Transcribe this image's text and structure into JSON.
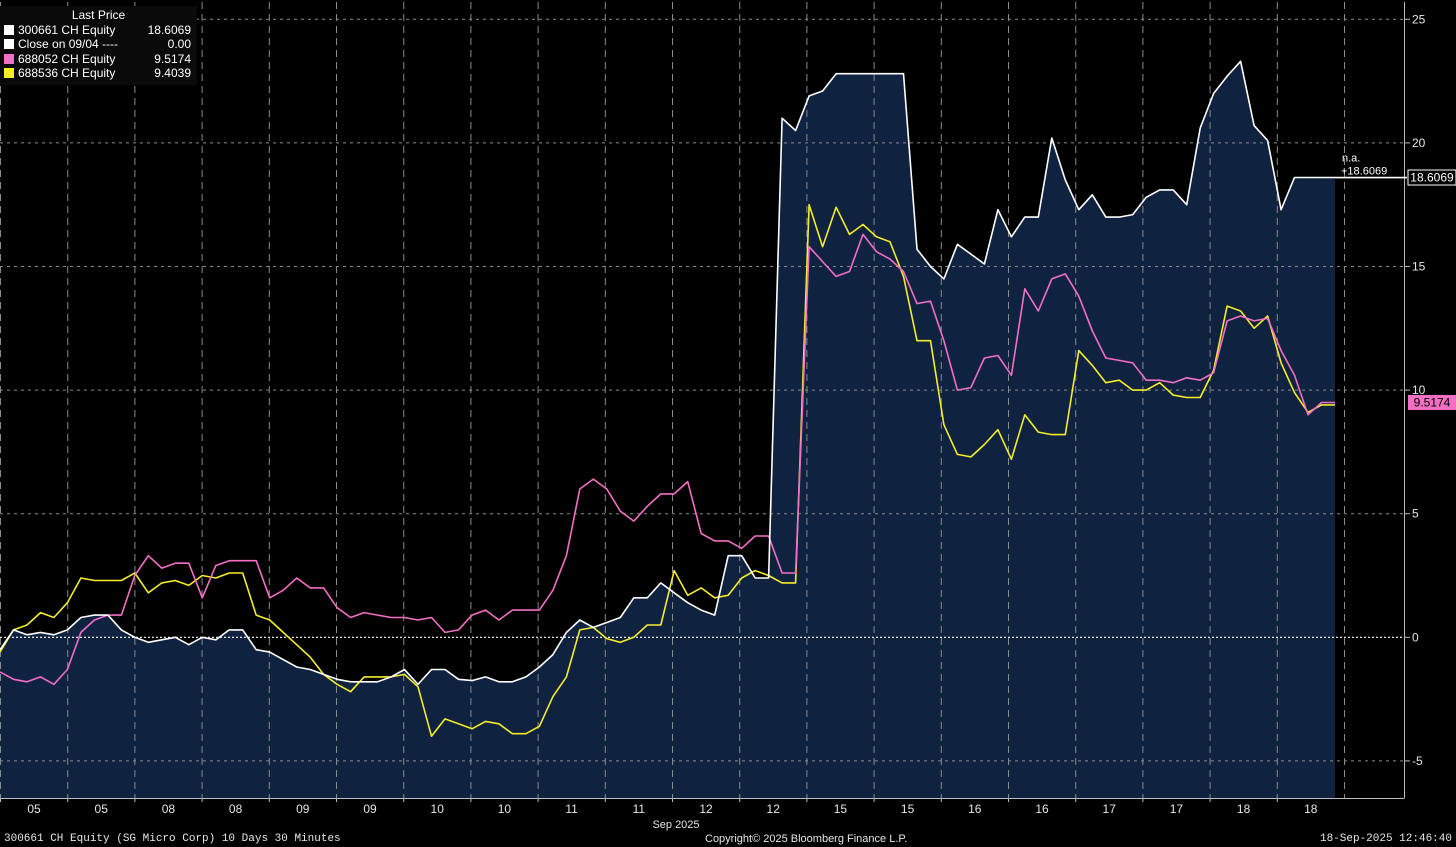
{
  "chart_data": {
    "type": "line",
    "title": "",
    "xlabel": "Sep 2025",
    "ylabel": "",
    "ylim": [
      -6.5,
      25.7
    ],
    "grid": true,
    "y_ticks": [
      25,
      20,
      15,
      10,
      5,
      0,
      -5
    ],
    "y_tick_labels": [
      "25",
      "20",
      "15",
      "10",
      "5",
      "0",
      "-5"
    ],
    "x_tick_labels": [
      "05",
      "05",
      "08",
      "08",
      "09",
      "09",
      "10",
      "10",
      "11",
      "11",
      "12",
      "12",
      "15",
      "15",
      "16",
      "16",
      "17",
      "17",
      "18",
      "18"
    ],
    "zero_line_label": "0",
    "colors": {
      "white_series": "#ffffff",
      "pink_series": "#f26fc4",
      "yellow_series": "#f5ec2a",
      "fill": "#0f2240",
      "grid": "#8a8a8a"
    },
    "legend": {
      "header": "Last Price",
      "placement": "top-left",
      "entries": [
        {
          "name": "300661 CH Equity",
          "value": "18.6069",
          "color": "#ffffff"
        },
        {
          "name": "Close on 09/04 ----",
          "value": "0.00",
          "color": "#ffffff"
        },
        {
          "name": "688052 CH Equity",
          "value": "9.5174",
          "color": "#f26fc4"
        },
        {
          "name": "688536 CH Equity",
          "value": "9.4039",
          "color": "#f5ec2a"
        }
      ]
    },
    "annotations": {
      "na_label": "n.a.",
      "last_change_label": "+18.6069",
      "last_price_tag": "18.6069",
      "pink_last_tag": "9.5174"
    },
    "series": [
      {
        "name": "300661 CH Equity",
        "color": "#ffffff",
        "fill": true,
        "values": [
          -0.5,
          0.3,
          0.1,
          0.2,
          0.1,
          0.3,
          0.8,
          0.9,
          0.9,
          0.3,
          0,
          -0.2,
          -0.1,
          0,
          -0.3,
          0,
          -0.1,
          0.3,
          0.3,
          -0.5,
          -0.6,
          -0.9,
          -1.2,
          -1.3,
          -1.5,
          -1.7,
          -1.8,
          -1.8,
          -1.8,
          -1.6,
          -1.3,
          -1.9,
          -1.3,
          -1.3,
          -1.7,
          -1.75,
          -1.6,
          -1.8,
          -1.8,
          -1.6,
          -1.2,
          -0.7,
          0.2,
          0.7,
          0.4,
          0.6,
          0.8,
          1.6,
          1.6,
          2.2,
          1.8,
          1.4,
          1.1,
          0.9,
          3.3,
          3.3,
          2.4,
          2.4,
          21,
          20.5,
          21.9,
          22.1,
          22.8,
          22.8,
          22.8,
          22.8,
          22.8,
          22.8,
          15.7,
          15,
          14.5,
          15.9,
          15.5,
          15.1,
          17.3,
          16.2,
          17,
          17,
          20.2,
          18.5,
          17.3,
          17.9,
          17,
          17,
          17.1,
          17.8,
          18.1,
          18.1,
          17.5,
          20.6,
          22,
          22.7,
          23.3,
          20.7,
          20.1,
          17.3,
          18.6,
          18.6,
          18.6,
          18.6
        ]
      },
      {
        "name": "688052 CH Equity",
        "color": "#f26fc4",
        "fill": false,
        "values": [
          -1.4,
          -1.7,
          -1.8,
          -1.6,
          -1.9,
          -1.3,
          0.2,
          0.7,
          0.9,
          0.9,
          2.5,
          3.3,
          2.8,
          3.0,
          3.0,
          1.6,
          2.9,
          3.1,
          3.1,
          3.1,
          1.6,
          1.9,
          2.4,
          2.0,
          2.0,
          1.2,
          0.8,
          1.0,
          0.9,
          0.8,
          0.8,
          0.7,
          0.8,
          0.2,
          0.3,
          0.9,
          1.1,
          0.7,
          1.1,
          1.1,
          1.1,
          1.9,
          3.3,
          6.0,
          6.4,
          6.0,
          5.1,
          4.7,
          5.3,
          5.8,
          5.8,
          6.3,
          4.2,
          3.9,
          3.9,
          3.6,
          4.1,
          4.1,
          2.6,
          2.6,
          15.8,
          15.2,
          14.6,
          14.8,
          16.3,
          15.6,
          15.3,
          14.8,
          13.5,
          13.6,
          12,
          10,
          10.1,
          11.3,
          11.4,
          10.6,
          14.1,
          13.2,
          14.5,
          14.7,
          13.8,
          12.4,
          11.3,
          11.2,
          11.1,
          10.4,
          10.4,
          10.3,
          10.5,
          10.4,
          10.7,
          12.8,
          13.0,
          12.8,
          12.9,
          11.6,
          10.6,
          9.0,
          9.5,
          9.5
        ]
      },
      {
        "name": "688536 CH Equity",
        "color": "#f5ec2a",
        "fill": false,
        "values": [
          -0.6,
          0.3,
          0.5,
          1.0,
          0.8,
          1.4,
          2.4,
          2.3,
          2.3,
          2.3,
          2.6,
          1.8,
          2.2,
          2.3,
          2.1,
          2.5,
          2.4,
          2.6,
          2.6,
          0.9,
          0.7,
          0.2,
          -0.3,
          -0.8,
          -1.5,
          -1.9,
          -2.2,
          -1.6,
          -1.6,
          -1.6,
          -1.5,
          -2.0,
          -4.0,
          -3.3,
          -3.5,
          -3.7,
          -3.4,
          -3.5,
          -3.9,
          -3.9,
          -3.6,
          -2.4,
          -1.6,
          0.3,
          0.4,
          -0.05,
          -0.2,
          0,
          0.5,
          0.5,
          2.7,
          1.7,
          2.0,
          1.6,
          1.7,
          2.4,
          2.7,
          2.5,
          2.2,
          2.2,
          17.5,
          15.8,
          17.4,
          16.3,
          16.7,
          16.2,
          16.0,
          14.6,
          12.0,
          12.0,
          8.6,
          7.4,
          7.3,
          7.8,
          8.4,
          7.2,
          9.0,
          8.3,
          8.2,
          8.2,
          11.6,
          11.0,
          10.3,
          10.4,
          10.0,
          10.0,
          10.3,
          9.8,
          9.7,
          9.7,
          10.8,
          13.4,
          13.2,
          12.5,
          13.0,
          11.1,
          9.9,
          9.1,
          9.4,
          9.4
        ]
      }
    ]
  },
  "footer": {
    "left": "300661 CH Equity (SG Micro Corp) 10 Days 30 Minutes",
    "center": "Copyright© 2025 Bloomberg Finance L.P.",
    "right": "18-Sep-2025 12:46:40"
  }
}
